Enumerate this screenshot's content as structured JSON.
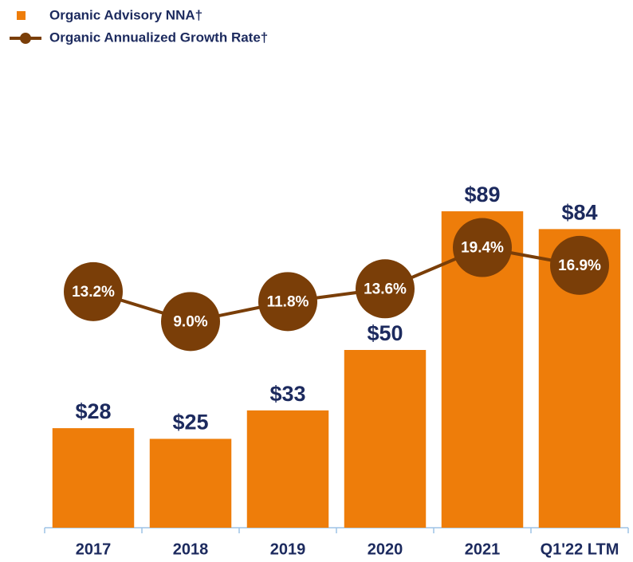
{
  "chart_data": {
    "type": "bar",
    "categories": [
      "2017",
      "2018",
      "2019",
      "2020",
      "2021",
      "Q1'22 LTM"
    ],
    "series": [
      {
        "name": "Organic Advisory NNA†",
        "type": "bar",
        "color": "#ee7d0a",
        "values": [
          28,
          25,
          33,
          50,
          89,
          84
        ],
        "value_labels": [
          "$28",
          "$25",
          "$33",
          "$50",
          "$89",
          "$84"
        ]
      },
      {
        "name": "Organic Annualized Growth Rate†",
        "type": "line",
        "axis": "y2",
        "color": "#7a3e08",
        "values": [
          13.2,
          9.0,
          11.8,
          13.6,
          19.4,
          16.9
        ],
        "value_labels": [
          "13.2%",
          "9.0%",
          "11.8%",
          "13.6%",
          "19.4%",
          "16.9%"
        ]
      }
    ],
    "ylim": [
      0,
      100
    ],
    "y2lim": [
      -20,
      30
    ],
    "legend": "top-left"
  }
}
